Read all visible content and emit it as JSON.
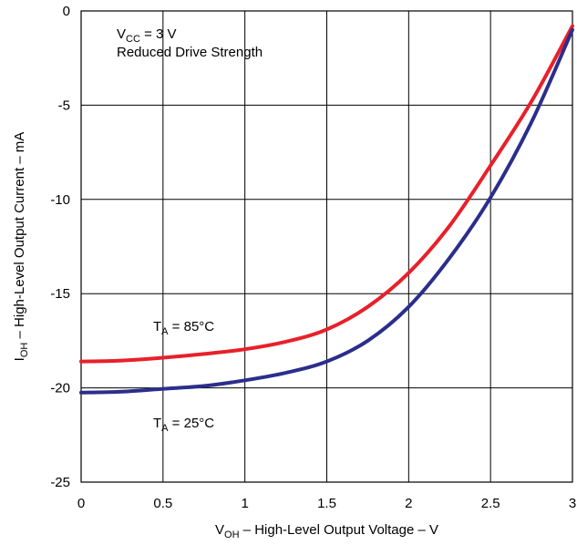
{
  "chart_data": {
    "type": "line",
    "title": "",
    "xlabel": {
      "main": "V",
      "sub": "OH",
      "rest": " – High-Level Output Voltage – V"
    },
    "ylabel": {
      "main": "I",
      "sub": "OH",
      "rest": " – High-Level Output Current – mA"
    },
    "xlim": [
      0,
      3
    ],
    "ylim": [
      -25,
      0
    ],
    "xticks": [
      0,
      0.5,
      1,
      1.5,
      2,
      2.5,
      3
    ],
    "xtick_labels": [
      "0",
      "0.5",
      "1",
      "1.5",
      "2",
      "2.5",
      "3"
    ],
    "yticks": [
      0,
      -5,
      -10,
      -15,
      -20,
      -25
    ],
    "ytick_labels": [
      "0",
      "-5",
      "-10",
      "-15",
      "-20",
      "-25"
    ],
    "grid": true,
    "condition": {
      "line1_main": "V",
      "line1_sub": "CC",
      "line1_rest": " = 3 V",
      "line2": "Reduced Drive Strength"
    },
    "series": [
      {
        "name": "T_A = 85°C",
        "label_main": "T",
        "label_sub": "A",
        "label_rest": " = 85°C",
        "color": "#e8202a",
        "x": [
          0,
          0.25,
          0.5,
          0.75,
          1.0,
          1.25,
          1.5,
          1.75,
          2.0,
          2.25,
          2.5,
          2.75,
          3.0
        ],
        "y": [
          -18.6,
          -18.55,
          -18.4,
          -18.2,
          -17.95,
          -17.55,
          -16.9,
          -15.7,
          -13.9,
          -11.4,
          -8.2,
          -4.8,
          -0.8
        ]
      },
      {
        "name": "T_A = 25°C",
        "label_main": "T",
        "label_sub": "A",
        "label_rest": " = 25°C",
        "color": "#2b2e8c",
        "x": [
          0,
          0.25,
          0.5,
          0.75,
          1.0,
          1.25,
          1.5,
          1.75,
          2.0,
          2.25,
          2.5,
          2.75,
          3.0
        ],
        "y": [
          -20.25,
          -20.2,
          -20.05,
          -19.9,
          -19.6,
          -19.2,
          -18.6,
          -17.5,
          -15.7,
          -13.1,
          -9.9,
          -5.9,
          -1.0
        ]
      }
    ]
  }
}
